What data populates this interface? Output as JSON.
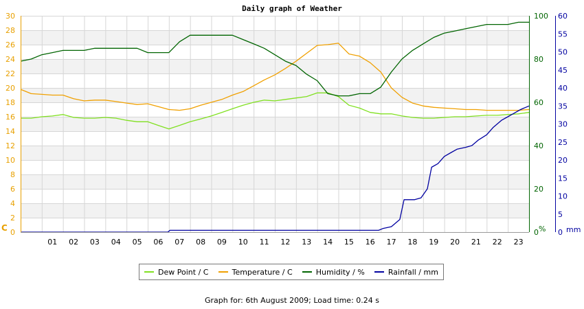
{
  "chart_data": {
    "type": "line",
    "title": "Daily graph of Weather",
    "footer": "Graph for: 6th August 2009; Load time: 0.24 s",
    "grid": true,
    "x": {
      "tick_labels": [
        "01",
        "02",
        "03",
        "04",
        "05",
        "06",
        "07",
        "08",
        "09",
        "10",
        "11",
        "12",
        "13",
        "14",
        "15",
        "16",
        "17",
        "18",
        "19",
        "20",
        "21",
        "22",
        "23"
      ],
      "range": [
        0,
        24
      ]
    },
    "axes": {
      "left": {
        "label": "C",
        "min": 0,
        "max": 30,
        "step": 2,
        "color": "#e8a000"
      },
      "right1": {
        "label": "%",
        "min": 0,
        "max": 100,
        "step": 20,
        "color": "#006400"
      },
      "right2": {
        "label": "mm",
        "min": 0,
        "max": 60,
        "step": 5,
        "color": "#0000a0"
      }
    },
    "series": [
      {
        "name": "Dew Point / C",
        "axis": "left",
        "color": "#80e020",
        "x": [
          0,
          0.5,
          1,
          1.5,
          2,
          2.5,
          3,
          3.5,
          4,
          4.5,
          5,
          5.5,
          6,
          6.5,
          7,
          7.5,
          8,
          8.5,
          9,
          9.5,
          10,
          10.5,
          11,
          11.5,
          12,
          12.5,
          13,
          13.5,
          14,
          14.5,
          15,
          15.5,
          16,
          16.5,
          17,
          17.5,
          18,
          18.5,
          19,
          19.5,
          20,
          20.5,
          21,
          21.5,
          22,
          22.5,
          23,
          23.5,
          24
        ],
        "values": [
          15.8,
          15.8,
          16.0,
          16.1,
          16.3,
          15.9,
          15.8,
          15.8,
          15.9,
          15.8,
          15.5,
          15.3,
          15.3,
          14.8,
          14.3,
          14.8,
          15.3,
          15.7,
          16.1,
          16.6,
          17.1,
          17.6,
          18.0,
          18.3,
          18.2,
          18.4,
          18.6,
          18.8,
          19.3,
          19.3,
          18.8,
          17.6,
          17.2,
          16.6,
          16.4,
          16.4,
          16.1,
          15.9,
          15.8,
          15.8,
          15.9,
          16.0,
          16.0,
          16.1,
          16.2,
          16.2,
          16.3,
          16.4,
          16.6
        ]
      },
      {
        "name": "Temperature / C",
        "axis": "left",
        "color": "#f0a000",
        "x": [
          0,
          0.5,
          1,
          1.5,
          2,
          2.5,
          3,
          3.5,
          4,
          4.5,
          5,
          5.5,
          6,
          6.5,
          7,
          7.5,
          8,
          8.5,
          9,
          9.5,
          10,
          10.5,
          11,
          11.5,
          12,
          12.5,
          13,
          13.5,
          14,
          14.5,
          15,
          15.5,
          16,
          16.5,
          17,
          17.5,
          18,
          18.5,
          19,
          19.5,
          20,
          20.5,
          21,
          21.5,
          22,
          22.5,
          23,
          23.5,
          24
        ],
        "values": [
          19.8,
          19.2,
          19.1,
          19.0,
          19.0,
          18.5,
          18.2,
          18.3,
          18.3,
          18.1,
          17.9,
          17.7,
          17.8,
          17.4,
          17.0,
          16.9,
          17.1,
          17.6,
          18.0,
          18.4,
          19.0,
          19.5,
          20.3,
          21.1,
          21.8,
          22.7,
          23.7,
          24.8,
          25.9,
          26.0,
          26.2,
          24.7,
          24.4,
          23.5,
          22.2,
          20.0,
          18.7,
          17.9,
          17.5,
          17.3,
          17.2,
          17.1,
          17.0,
          17.0,
          16.9,
          16.9,
          16.9,
          16.9,
          17.0
        ]
      },
      {
        "name": "Humidity / %",
        "axis": "right1",
        "color": "#006400",
        "x": [
          0,
          0.5,
          1,
          1.5,
          2,
          2.5,
          3,
          3.5,
          4,
          4.5,
          5,
          5.5,
          6,
          6.5,
          7,
          7.5,
          8,
          8.5,
          9,
          9.5,
          10,
          10.5,
          11,
          11.5,
          12,
          12.5,
          13,
          13.5,
          14,
          14.5,
          15,
          15.5,
          16,
          16.5,
          17,
          17.5,
          18,
          18.5,
          19,
          19.5,
          20,
          20.5,
          21,
          21.5,
          22,
          22.5,
          23,
          23.5,
          24
        ],
        "values": [
          79,
          80,
          82,
          83,
          84,
          84,
          84,
          85,
          85,
          85,
          85,
          85,
          83,
          83,
          83,
          88,
          91,
          91,
          91,
          91,
          91,
          89,
          87,
          85,
          82,
          79,
          77,
          73,
          70,
          64,
          63,
          63,
          64,
          64,
          67,
          74,
          80,
          84,
          87,
          90,
          92,
          93,
          94,
          95,
          96,
          96,
          96,
          97,
          97
        ]
      },
      {
        "name": "Rainfall / mm",
        "axis": "right2",
        "color": "#0000a0",
        "x": [
          0,
          1,
          2,
          3,
          4,
          5,
          6,
          6.95,
          7.05,
          8,
          9,
          10,
          11,
          12,
          13,
          14,
          15,
          16,
          16.9,
          17.1,
          17.5,
          17.9,
          18.1,
          18.3,
          18.6,
          18.9,
          19.2,
          19.4,
          19.7,
          20,
          20.3,
          20.6,
          21,
          21.3,
          21.6,
          22,
          22.3,
          22.7,
          23,
          23.3,
          23.6,
          24
        ],
        "values": [
          0,
          0,
          0,
          0,
          0,
          0,
          0,
          0,
          0.5,
          0.5,
          0.5,
          0.5,
          0.5,
          0.5,
          0.5,
          0.5,
          0.5,
          0.5,
          0.5,
          1,
          1.5,
          3.5,
          9,
          9,
          9,
          9.5,
          12,
          18,
          19,
          21,
          22,
          23,
          23.5,
          24,
          25.5,
          27,
          29,
          31,
          32,
          33,
          34,
          35
        ]
      }
    ]
  }
}
